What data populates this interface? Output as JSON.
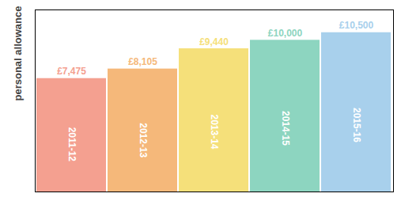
{
  "chart_data": {
    "type": "bar",
    "ylabel": "personal allowance",
    "categories": [
      "2011-12",
      "2012-13",
      "2013-14",
      "2014-15",
      "2015-16"
    ],
    "values": [
      7475,
      8105,
      9440,
      10000,
      10500
    ],
    "value_labels": [
      "£7,475",
      "£8,105",
      "£9,440",
      "£10,000",
      "£10,500"
    ],
    "colors": [
      "#F4A090",
      "#F5B87A",
      "#F5E07A",
      "#8DD5C0",
      "#A8D0EC"
    ],
    "ylim": [
      0,
      12000
    ],
    "grid": false,
    "data_labels": true,
    "tick_labels": false
  }
}
